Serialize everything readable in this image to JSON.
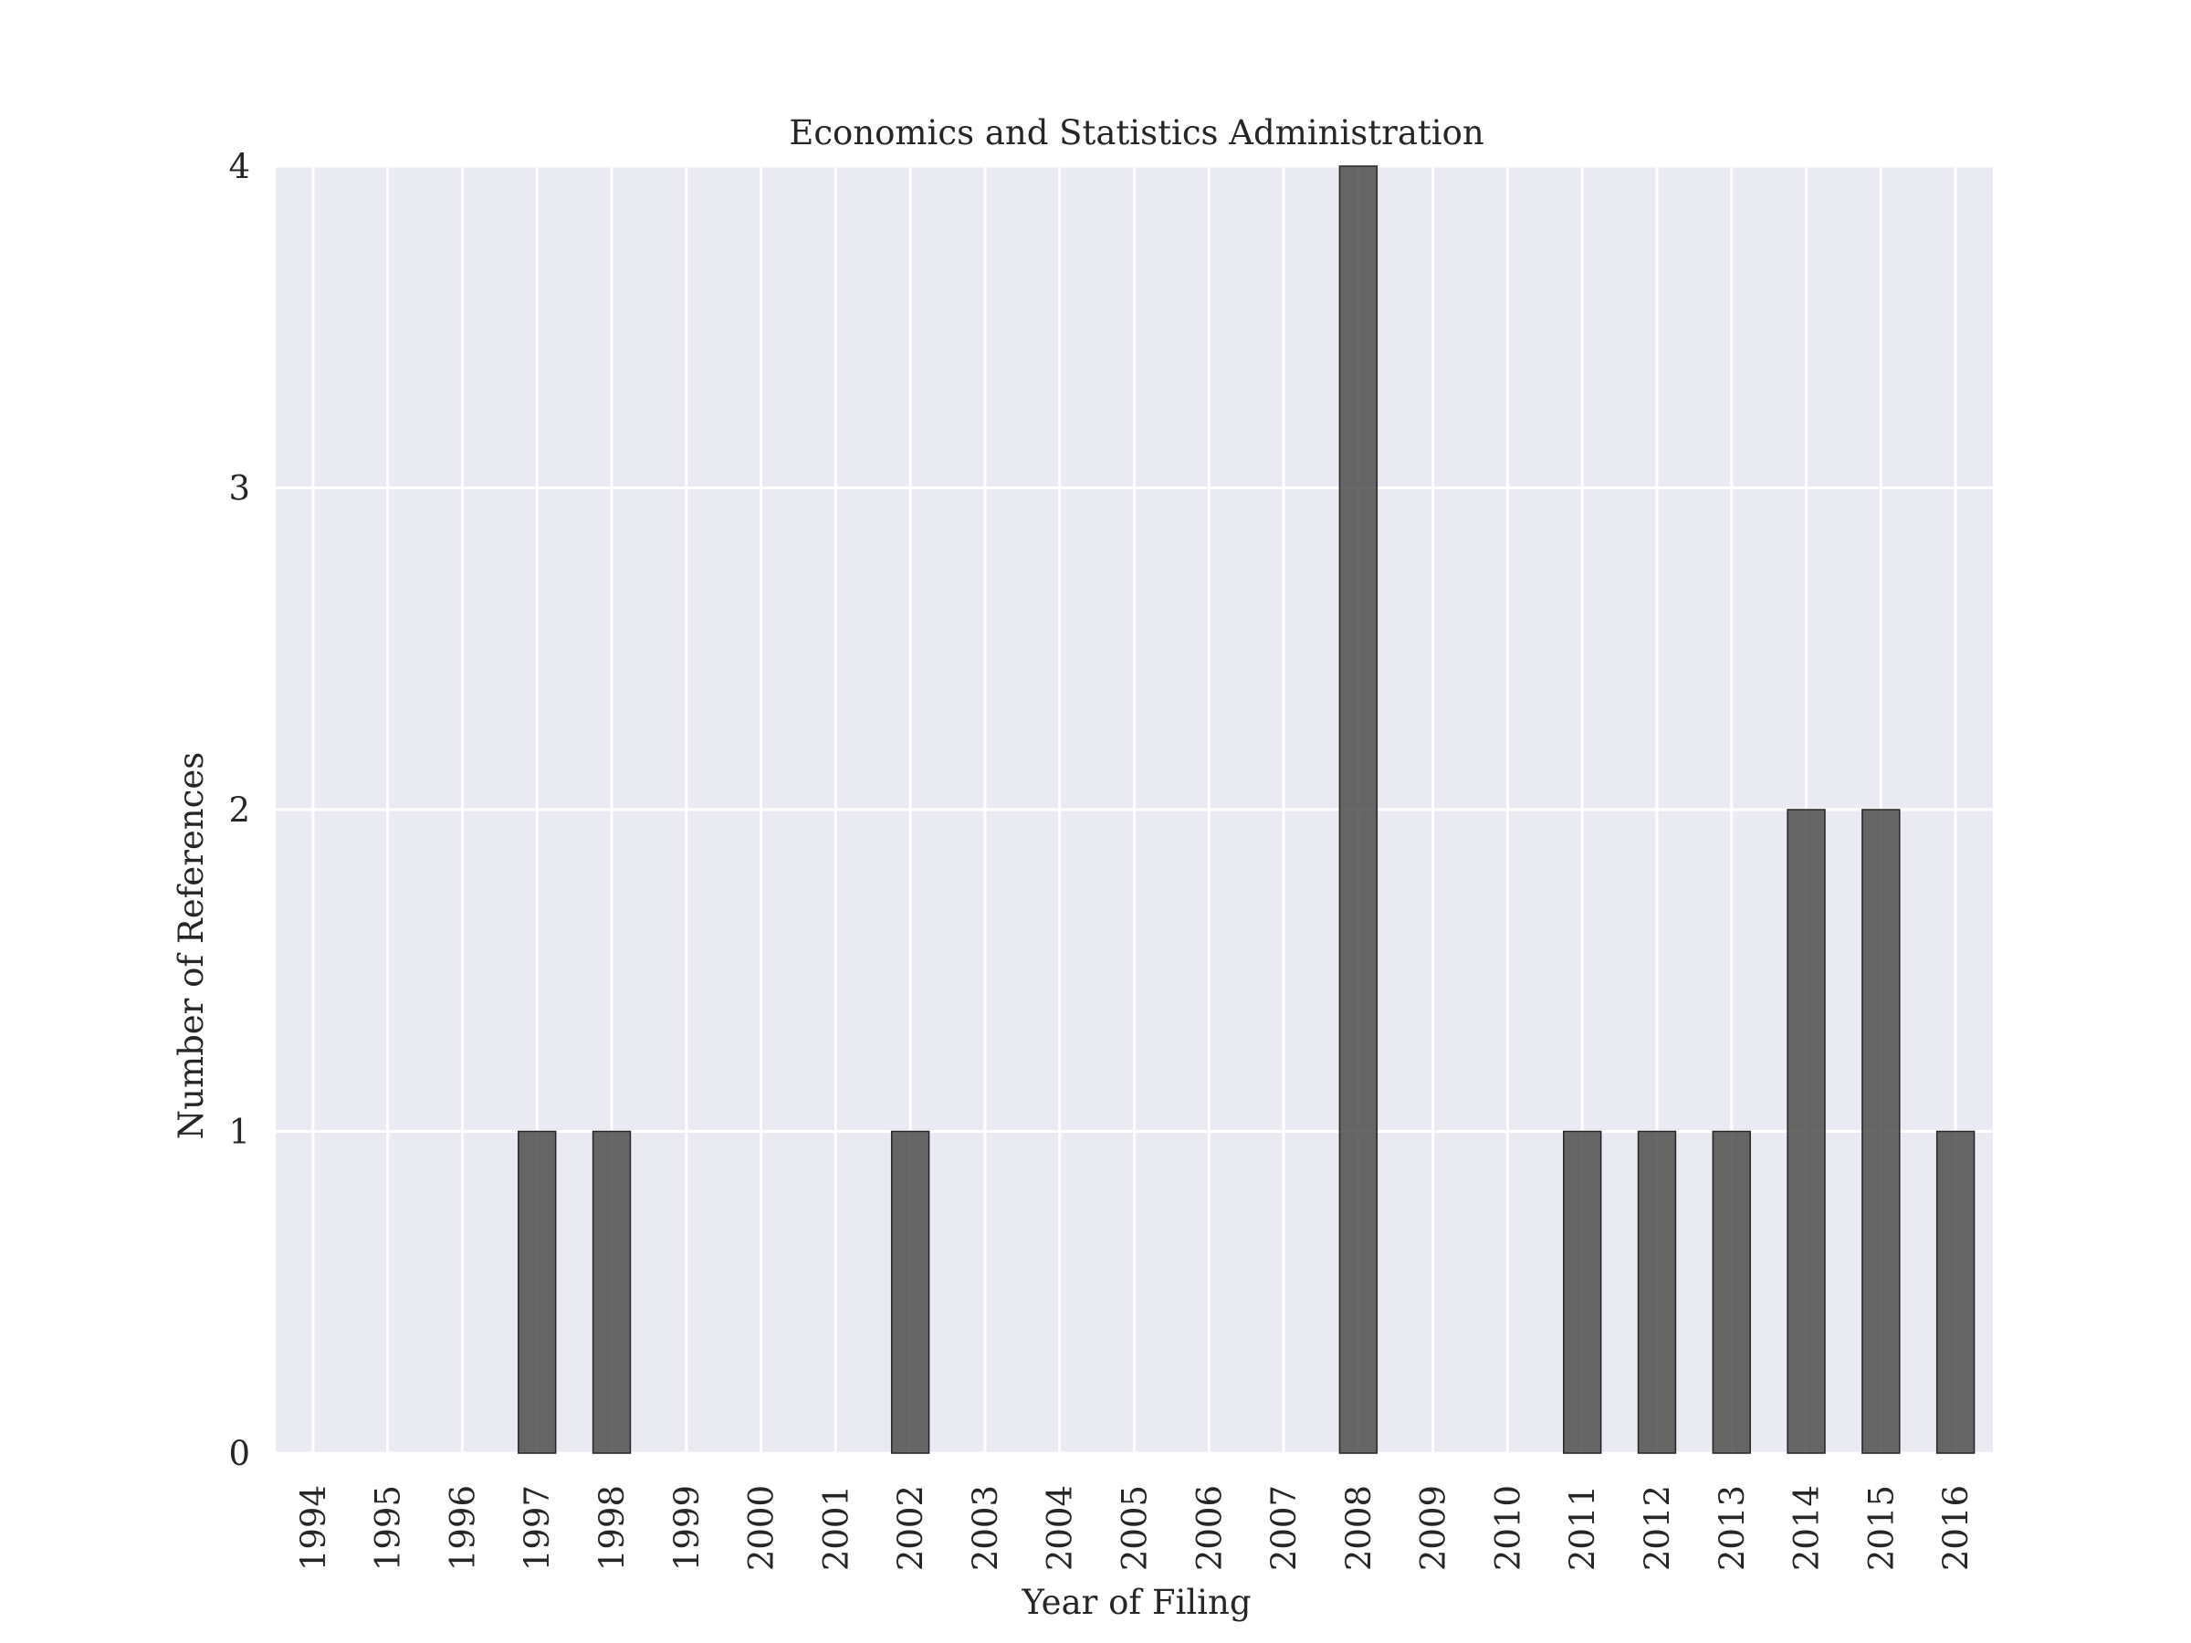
{
  "chart_data": {
    "type": "bar",
    "title": "Economics and Statistics Administration",
    "xlabel": "Year of Filing",
    "ylabel": "Number of References",
    "categories": [
      "1994",
      "1995",
      "1996",
      "1997",
      "1998",
      "1999",
      "2000",
      "2001",
      "2002",
      "2003",
      "2004",
      "2005",
      "2006",
      "2007",
      "2008",
      "2009",
      "2010",
      "2011",
      "2012",
      "2013",
      "2014",
      "2015",
      "2016"
    ],
    "values": [
      0,
      0,
      0,
      1,
      1,
      0,
      0,
      0,
      1,
      0,
      0,
      0,
      0,
      0,
      4,
      0,
      0,
      1,
      1,
      1,
      2,
      2,
      1
    ],
    "ylim": [
      0,
      4
    ],
    "yticks": [
      0,
      1,
      2,
      3,
      4
    ],
    "grid": true,
    "legend": "none",
    "colors": {
      "background": "#eaeaf2",
      "grid": "#ffffff",
      "bar": "#4d4d4d",
      "bar_edge": "#262626"
    }
  }
}
